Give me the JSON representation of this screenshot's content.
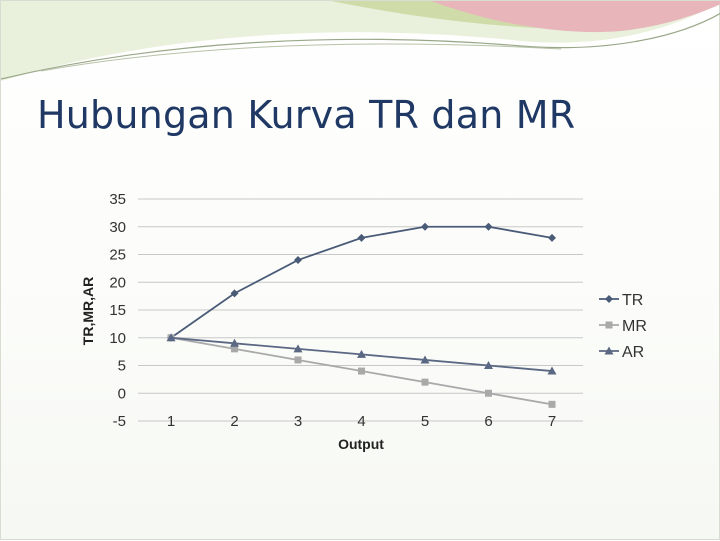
{
  "slide": {
    "title": "Hubungan Kurva TR dan MR"
  },
  "colors": {
    "title": "#1f3864",
    "tr": "#4a5b78",
    "mr": "#a9a9a9",
    "ar": "#5b6883",
    "grid": "#c8c8c8",
    "deco_green": "#c8d9a0",
    "deco_pink": "#e4a7ae"
  },
  "chart_data": {
    "type": "line",
    "title": "",
    "xlabel": "Output",
    "ylabel": "TR,MR,AR",
    "x": [
      1,
      2,
      3,
      4,
      5,
      6,
      7
    ],
    "ylim": [
      -5,
      35
    ],
    "yticks": [
      35,
      30,
      25,
      20,
      15,
      10,
      5,
      0,
      -5
    ],
    "grid": true,
    "legend_position": "right",
    "series": [
      {
        "name": "TR",
        "marker": "diamond",
        "values": [
          10,
          18,
          24,
          28,
          30,
          30,
          28
        ]
      },
      {
        "name": "MR",
        "marker": "square",
        "values": [
          10,
          8,
          6,
          4,
          2,
          0,
          -2
        ]
      },
      {
        "name": "AR",
        "marker": "triangle",
        "values": [
          10,
          9,
          8,
          7,
          6,
          5,
          4
        ]
      }
    ]
  }
}
